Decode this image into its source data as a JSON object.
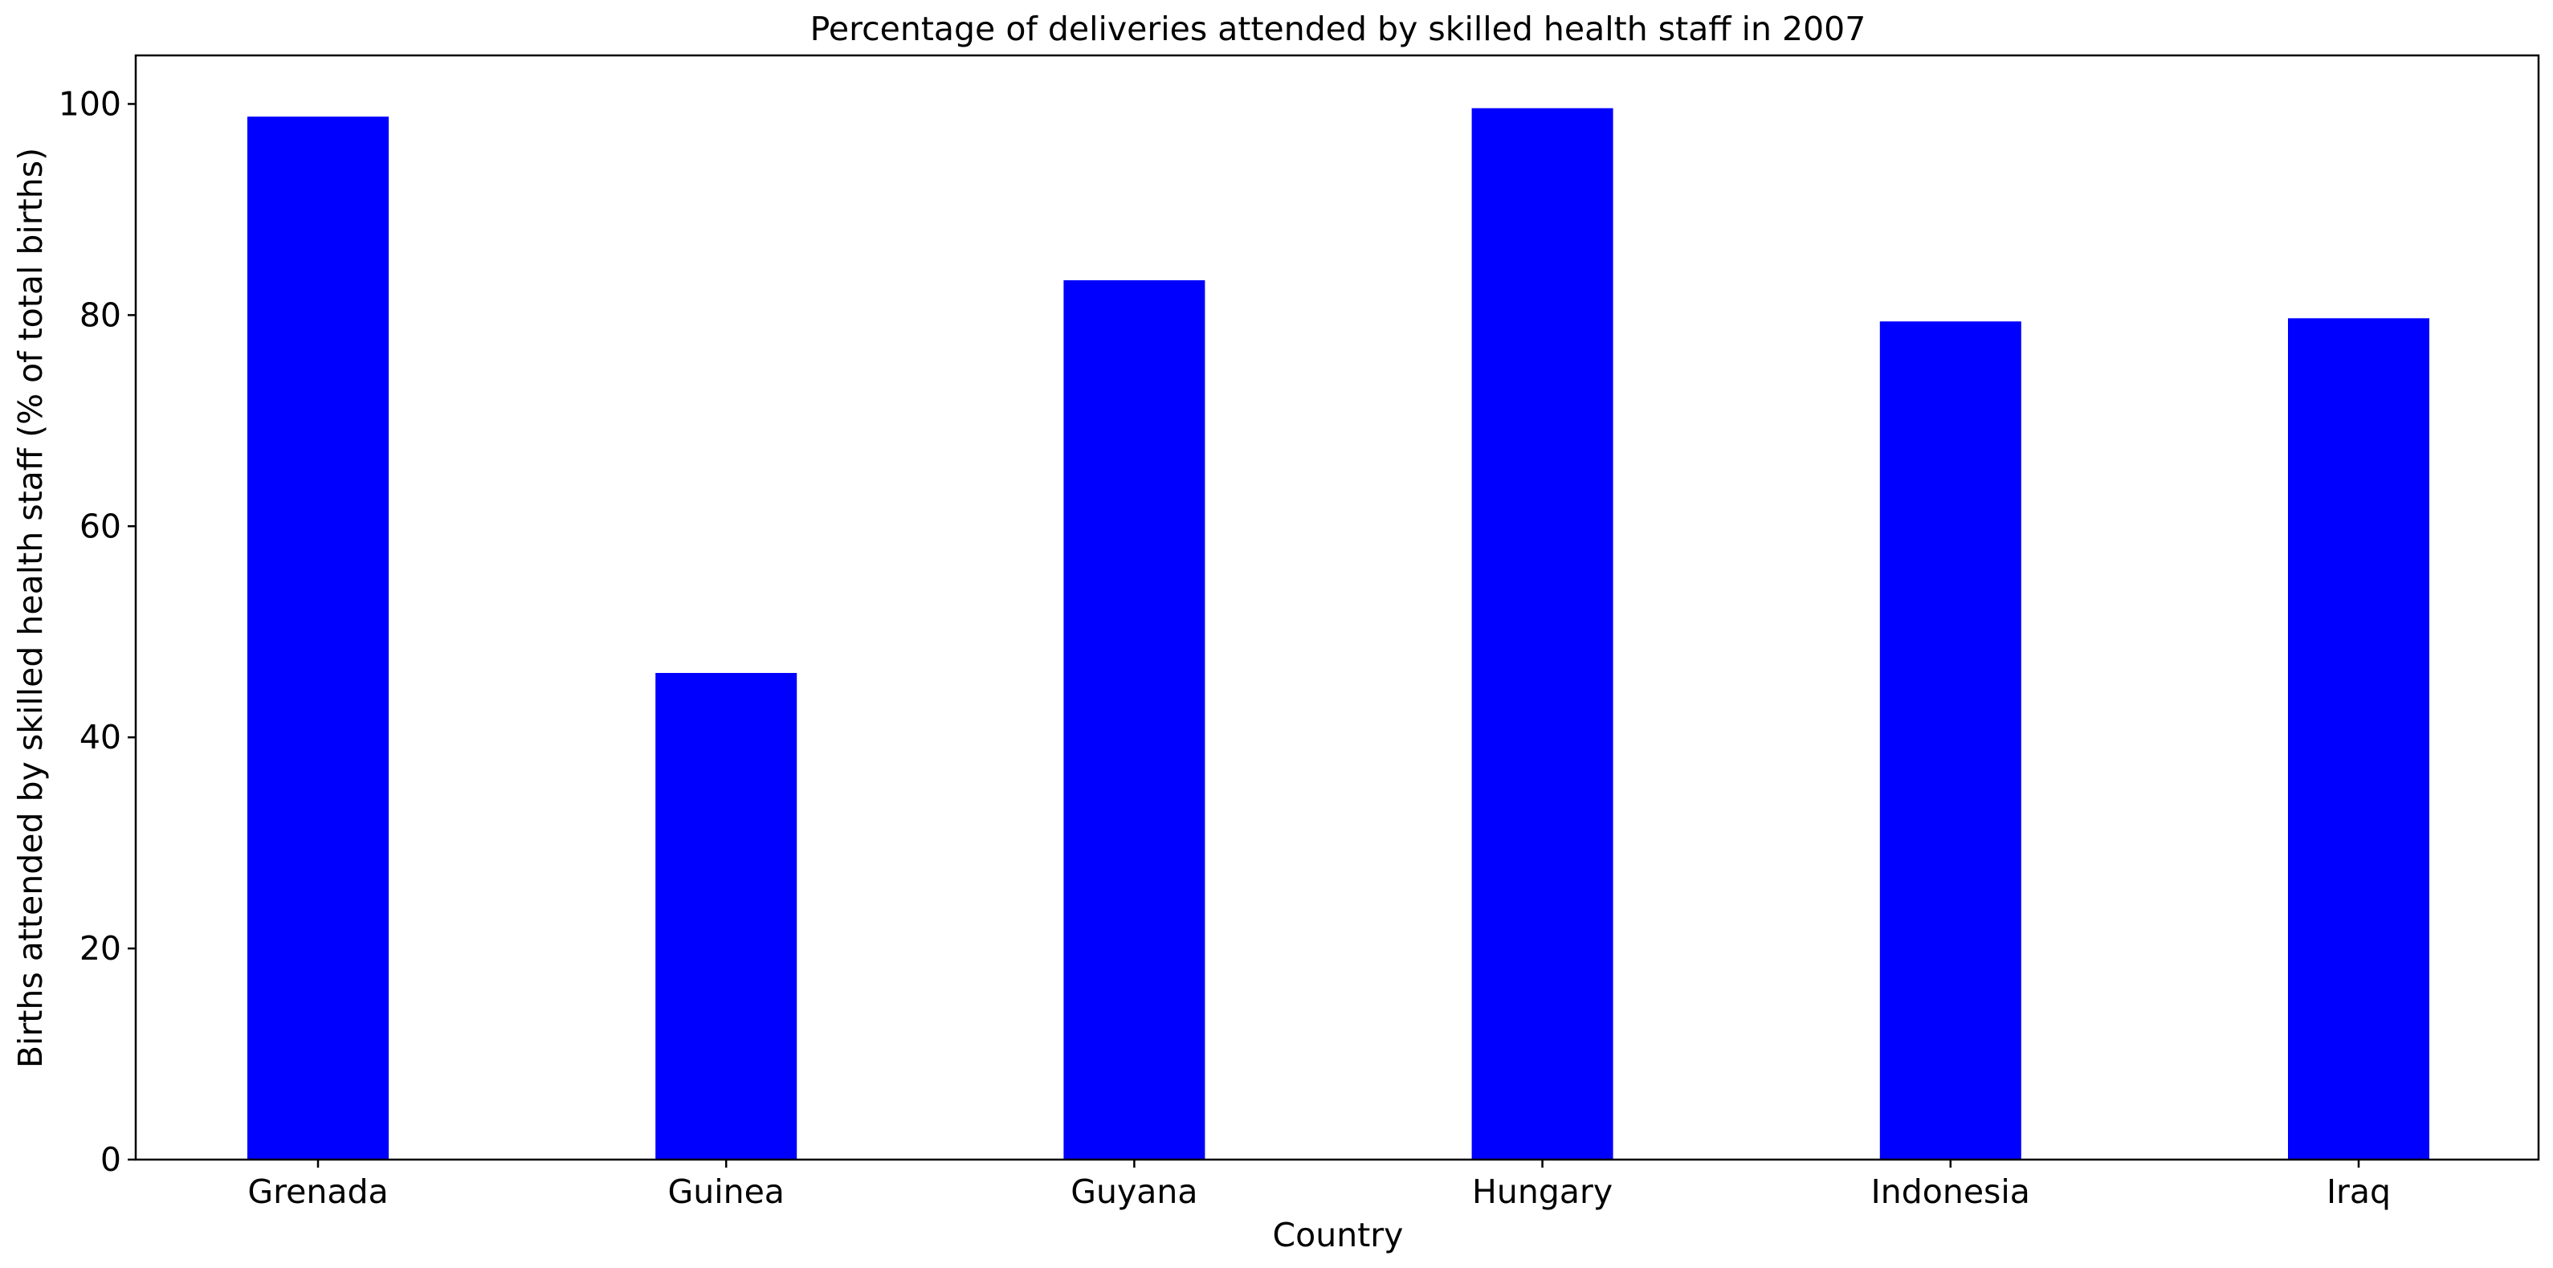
{
  "chart_data": {
    "type": "bar",
    "title": "Percentage of deliveries attended by skilled health staff in 2007",
    "xlabel": "Country",
    "ylabel": "Births attended by skilled health staff (% of total births)",
    "categories": [
      "Grenada",
      "Guinea",
      "Guyana",
      "Hungary",
      "Indonesia",
      "Iraq"
    ],
    "values": [
      98.8,
      46.1,
      83.3,
      99.6,
      79.4,
      79.7
    ],
    "ylim": [
      0,
      104.6
    ],
    "yticks": [
      0,
      20,
      40,
      60,
      80,
      100
    ],
    "bar_color": "#0000ff",
    "grid": false,
    "legend": "none"
  }
}
